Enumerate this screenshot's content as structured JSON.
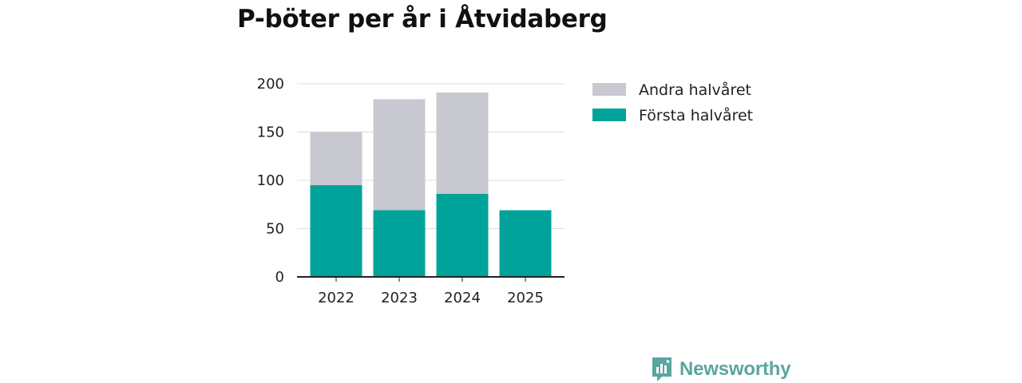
{
  "brand": {
    "name": "Newsworthy",
    "color": "#5aa69f"
  },
  "chart_data": {
    "type": "bar",
    "stacked": true,
    "title": "P-böter per år i Åtvidaberg",
    "xlabel": "",
    "ylabel": "",
    "categories": [
      "2022",
      "2023",
      "2024",
      "2025"
    ],
    "series": [
      {
        "name": "Första halvåret",
        "color": "#00a39a",
        "values": [
          95,
          69,
          86,
          69
        ]
      },
      {
        "name": "Andra halvåret",
        "color": "#c8c8d0",
        "values": [
          55,
          115,
          105,
          0
        ]
      }
    ],
    "ylim": [
      0,
      200
    ],
    "yticks": [
      0,
      50,
      100,
      150,
      200
    ],
    "grid": true,
    "legend_position": "right",
    "legend_order": [
      "Andra halvåret",
      "Första halvåret"
    ]
  }
}
